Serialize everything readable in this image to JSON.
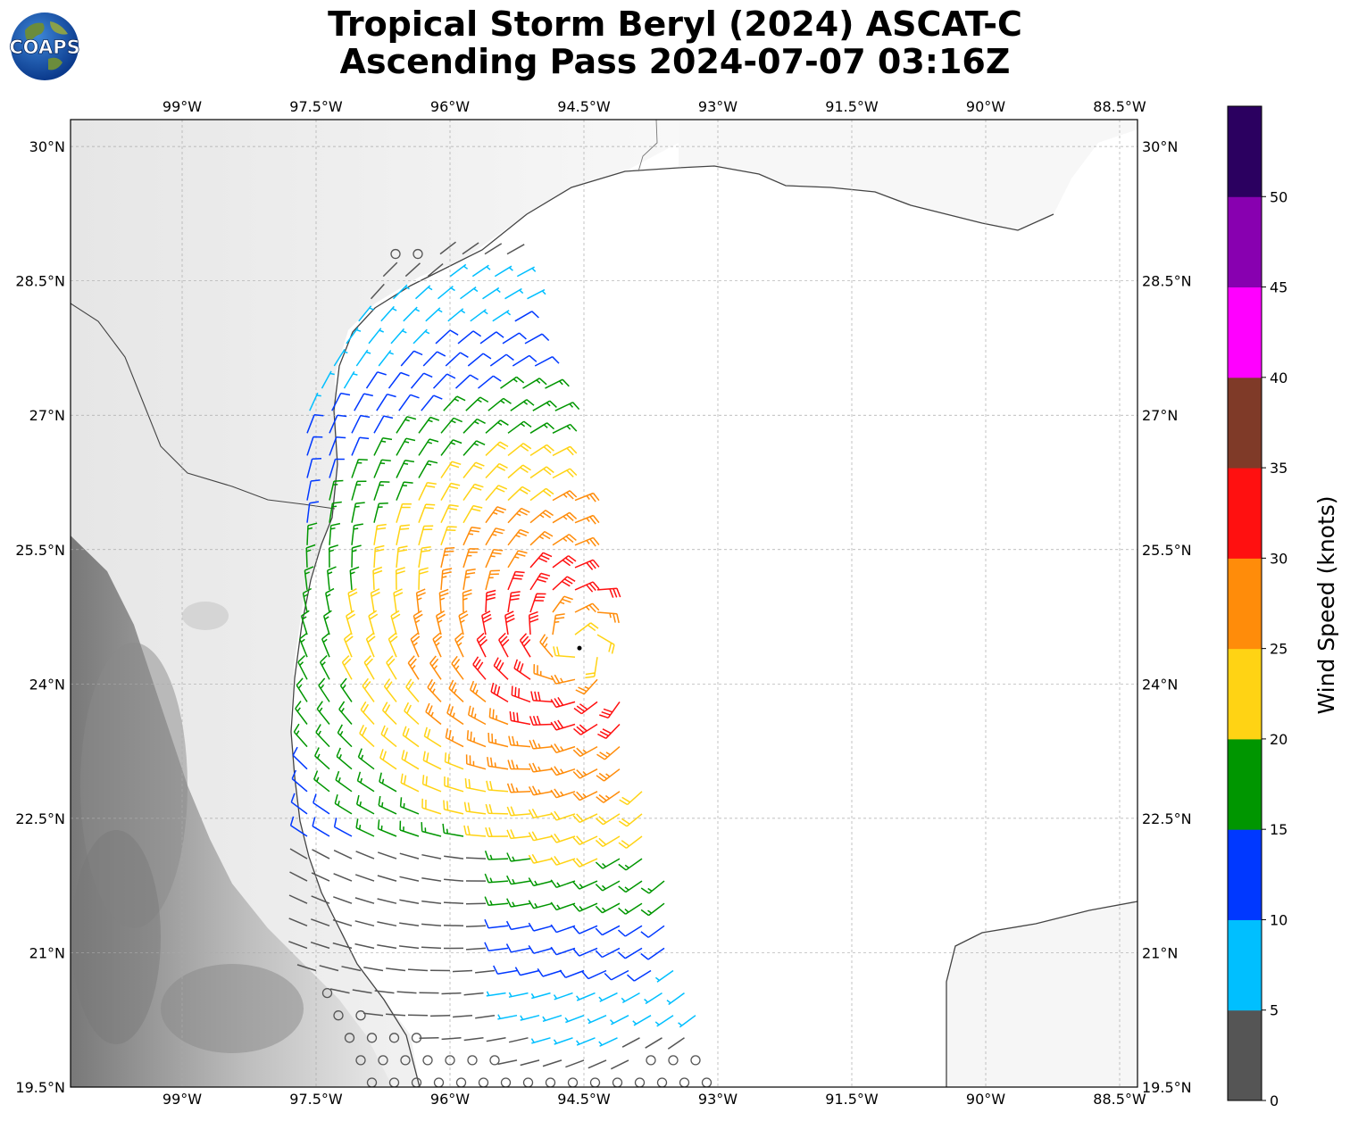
{
  "header": {
    "title_line1": "Tropical Storm Beryl (2024) ASCAT-C",
    "title_line2": "Ascending Pass 2024-07-07 03:16Z",
    "logo_text": "COAPS"
  },
  "map": {
    "lon_labels": [
      "99°W",
      "97.5°W",
      "96°W",
      "94.5°W",
      "93°W",
      "91.5°W",
      "90°W",
      "88.5°W"
    ],
    "lon_values": [
      -99,
      -97.5,
      -96,
      -94.5,
      -93,
      -91.5,
      -90,
      -88.5
    ],
    "lat_labels": [
      "30°N",
      "28.5°N",
      "27°N",
      "25.5°N",
      "24°N",
      "22.5°N",
      "21°N",
      "19.5°N"
    ],
    "lat_values": [
      30,
      28.5,
      27,
      25.5,
      24,
      22.5,
      21,
      19.5
    ],
    "extent": {
      "lon_min": -100.25,
      "lon_max": -88.3,
      "lat_min": 19.5,
      "lat_max": 30.3
    },
    "storm_center": {
      "lon": -94.55,
      "lat": 24.4
    },
    "wind_barb_units": "knots",
    "swath_description_note": ""
  },
  "colorbar": {
    "label": "Wind Speed (knots)",
    "ticks": [
      "0",
      "5",
      "10",
      "15",
      "20",
      "25",
      "30",
      "35",
      "40",
      "45",
      "50"
    ],
    "bins": [
      {
        "from": 0,
        "to": 5,
        "color": "#555555"
      },
      {
        "from": 5,
        "to": 10,
        "color": "#00bfff"
      },
      {
        "from": 10,
        "to": 15,
        "color": "#0038ff"
      },
      {
        "from": 15,
        "to": 20,
        "color": "#009600"
      },
      {
        "from": 20,
        "to": 25,
        "color": "#ffd314"
      },
      {
        "from": 25,
        "to": 30,
        "color": "#ff8c0a"
      },
      {
        "from": 30,
        "to": 35,
        "color": "#ff1010"
      },
      {
        "from": 35,
        "to": 40,
        "color": "#7f3a28"
      },
      {
        "from": 40,
        "to": 45,
        "color": "#ff00ff"
      },
      {
        "from": 45,
        "to": 50,
        "color": "#8800b0"
      },
      {
        "from": 50,
        "to": 55,
        "color": "#2b0060"
      }
    ]
  }
}
